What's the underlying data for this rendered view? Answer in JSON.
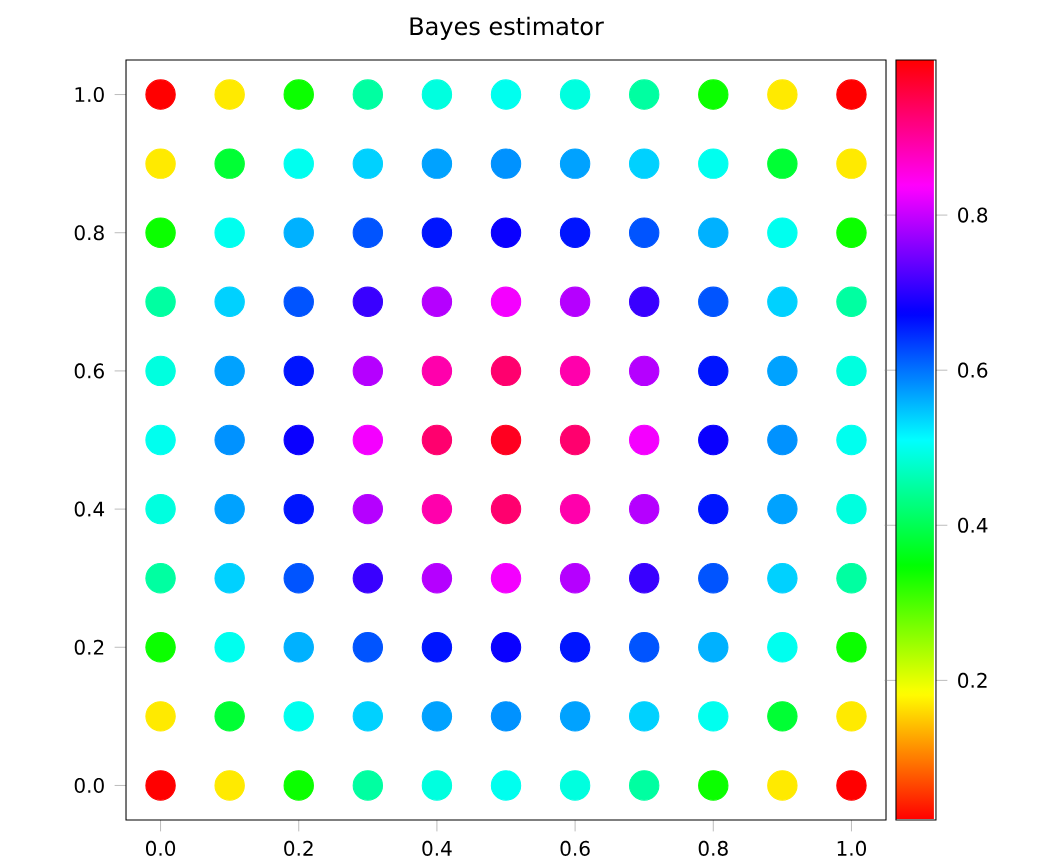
{
  "chart_data": {
    "type": "scatter",
    "title": "Bayes estimator",
    "x": [
      0,
      0.1,
      0.2,
      0.3,
      0.4,
      0.5,
      0.6,
      0.7,
      0.8,
      0.9,
      1.0,
      0,
      0.1,
      0.2,
      0.3,
      0.4,
      0.5,
      0.6,
      0.7,
      0.8,
      0.9,
      1.0,
      0,
      0.1,
      0.2,
      0.3,
      0.4,
      0.5,
      0.6,
      0.7,
      0.8,
      0.9,
      1.0,
      0,
      0.1,
      0.2,
      0.3,
      0.4,
      0.5,
      0.6,
      0.7,
      0.8,
      0.9,
      1.0,
      0,
      0.1,
      0.2,
      0.3,
      0.4,
      0.5,
      0.6,
      0.7,
      0.8,
      0.9,
      1.0,
      0,
      0.1,
      0.2,
      0.3,
      0.4,
      0.5,
      0.6,
      0.7,
      0.8,
      0.9,
      1.0,
      0,
      0.1,
      0.2,
      0.3,
      0.4,
      0.5,
      0.6,
      0.7,
      0.8,
      0.9,
      1.0,
      0,
      0.1,
      0.2,
      0.3,
      0.4,
      0.5,
      0.6,
      0.7,
      0.8,
      0.9,
      1.0,
      0,
      0.1,
      0.2,
      0.3,
      0.4,
      0.5,
      0.6,
      0.7,
      0.8,
      0.9,
      1.0,
      0,
      0.1,
      0.2,
      0.3,
      0.4,
      0.5,
      0.6,
      0.7,
      0.8,
      0.9,
      1.0,
      0,
      0.1,
      0.2,
      0.3,
      0.4,
      0.5,
      0.6,
      0.7,
      0.8,
      0.9,
      1.0
    ],
    "values": [
      0,
      0,
      0,
      0,
      0,
      0,
      0,
      0,
      0,
      0,
      0,
      0.1,
      0.1,
      0.1,
      0.1,
      0.1,
      0.1,
      0.1,
      0.1,
      0.1,
      0.1,
      0.1,
      0.2,
      0.2,
      0.2,
      0.2,
      0.2,
      0.2,
      0.2,
      0.2,
      0.2,
      0.2,
      0.2,
      0.3,
      0.3,
      0.3,
      0.3,
      0.3,
      0.3,
      0.3,
      0.3,
      0.3,
      0.3,
      0.3,
      0.4,
      0.4,
      0.4,
      0.4,
      0.4,
      0.4,
      0.4,
      0.4,
      0.4,
      0.4,
      0.4,
      0.5,
      0.5,
      0.5,
      0.5,
      0.5,
      0.5,
      0.5,
      0.5,
      0.5,
      0.5,
      0.5,
      0.6,
      0.6,
      0.6,
      0.6,
      0.6,
      0.6,
      0.6,
      0.6,
      0.6,
      0.6,
      0.6,
      0.7,
      0.7,
      0.7,
      0.7,
      0.7,
      0.7,
      0.7,
      0.7,
      0.7,
      0.7,
      0.7,
      0.8,
      0.8,
      0.8,
      0.8,
      0.8,
      0.8,
      0.8,
      0.8,
      0.8,
      0.8,
      0.8,
      0.9,
      0.9,
      0.9,
      0.9,
      0.9,
      0.9,
      0.9,
      0.9,
      0.9,
      0.9,
      0.9,
      1.0,
      1.0,
      1.0,
      1.0,
      1.0,
      1.0,
      1.0,
      1.0,
      1.0,
      1.0,
      1.0
    ],
    "cvalues": [
      0.02,
      0.17,
      0.34,
      0.45,
      0.49,
      0.5,
      0.49,
      0.45,
      0.34,
      0.17,
      0.02,
      0.17,
      0.38,
      0.5,
      0.54,
      0.57,
      0.58,
      0.57,
      0.54,
      0.5,
      0.38,
      0.17,
      0.34,
      0.5,
      0.56,
      0.62,
      0.66,
      0.68,
      0.66,
      0.62,
      0.56,
      0.5,
      0.34,
      0.45,
      0.54,
      0.62,
      0.71,
      0.79,
      0.83,
      0.79,
      0.71,
      0.62,
      0.54,
      0.45,
      0.49,
      0.57,
      0.66,
      0.79,
      0.89,
      0.93,
      0.89,
      0.79,
      0.66,
      0.57,
      0.49,
      0.5,
      0.58,
      0.68,
      0.83,
      0.93,
      0.98,
      0.93,
      0.83,
      0.68,
      0.58,
      0.5,
      0.49,
      0.57,
      0.66,
      0.79,
      0.89,
      0.93,
      0.89,
      0.79,
      0.66,
      0.57,
      0.49,
      0.45,
      0.54,
      0.62,
      0.71,
      0.79,
      0.83,
      0.79,
      0.71,
      0.62,
      0.54,
      0.45,
      0.34,
      0.5,
      0.56,
      0.62,
      0.66,
      0.68,
      0.66,
      0.62,
      0.56,
      0.5,
      0.34,
      0.17,
      0.38,
      0.5,
      0.54,
      0.57,
      0.58,
      0.57,
      0.54,
      0.5,
      0.38,
      0.17,
      0.02,
      0.17,
      0.34,
      0.45,
      0.49,
      0.5,
      0.49,
      0.45,
      0.34,
      0.17,
      0.02
    ],
    "xlim": [
      -0.05,
      1.05
    ],
    "ylim": [
      -0.05,
      1.05
    ],
    "xticks": [
      {
        "value": 0,
        "label": "0.0"
      },
      0.2,
      0.4,
      0.6,
      0.8,
      {
        "value": 1.0,
        "label": "1.0"
      }
    ],
    "yticks": [
      {
        "value": 0,
        "label": "0.0"
      },
      0.2,
      0.4,
      0.6,
      0.8,
      {
        "value": 1.0,
        "label": "1.0"
      }
    ],
    "clim": [
      0.02,
      1.0
    ],
    "cticks": [
      0.2,
      0.4,
      0.6,
      0.8
    ],
    "marker": "circle"
  }
}
